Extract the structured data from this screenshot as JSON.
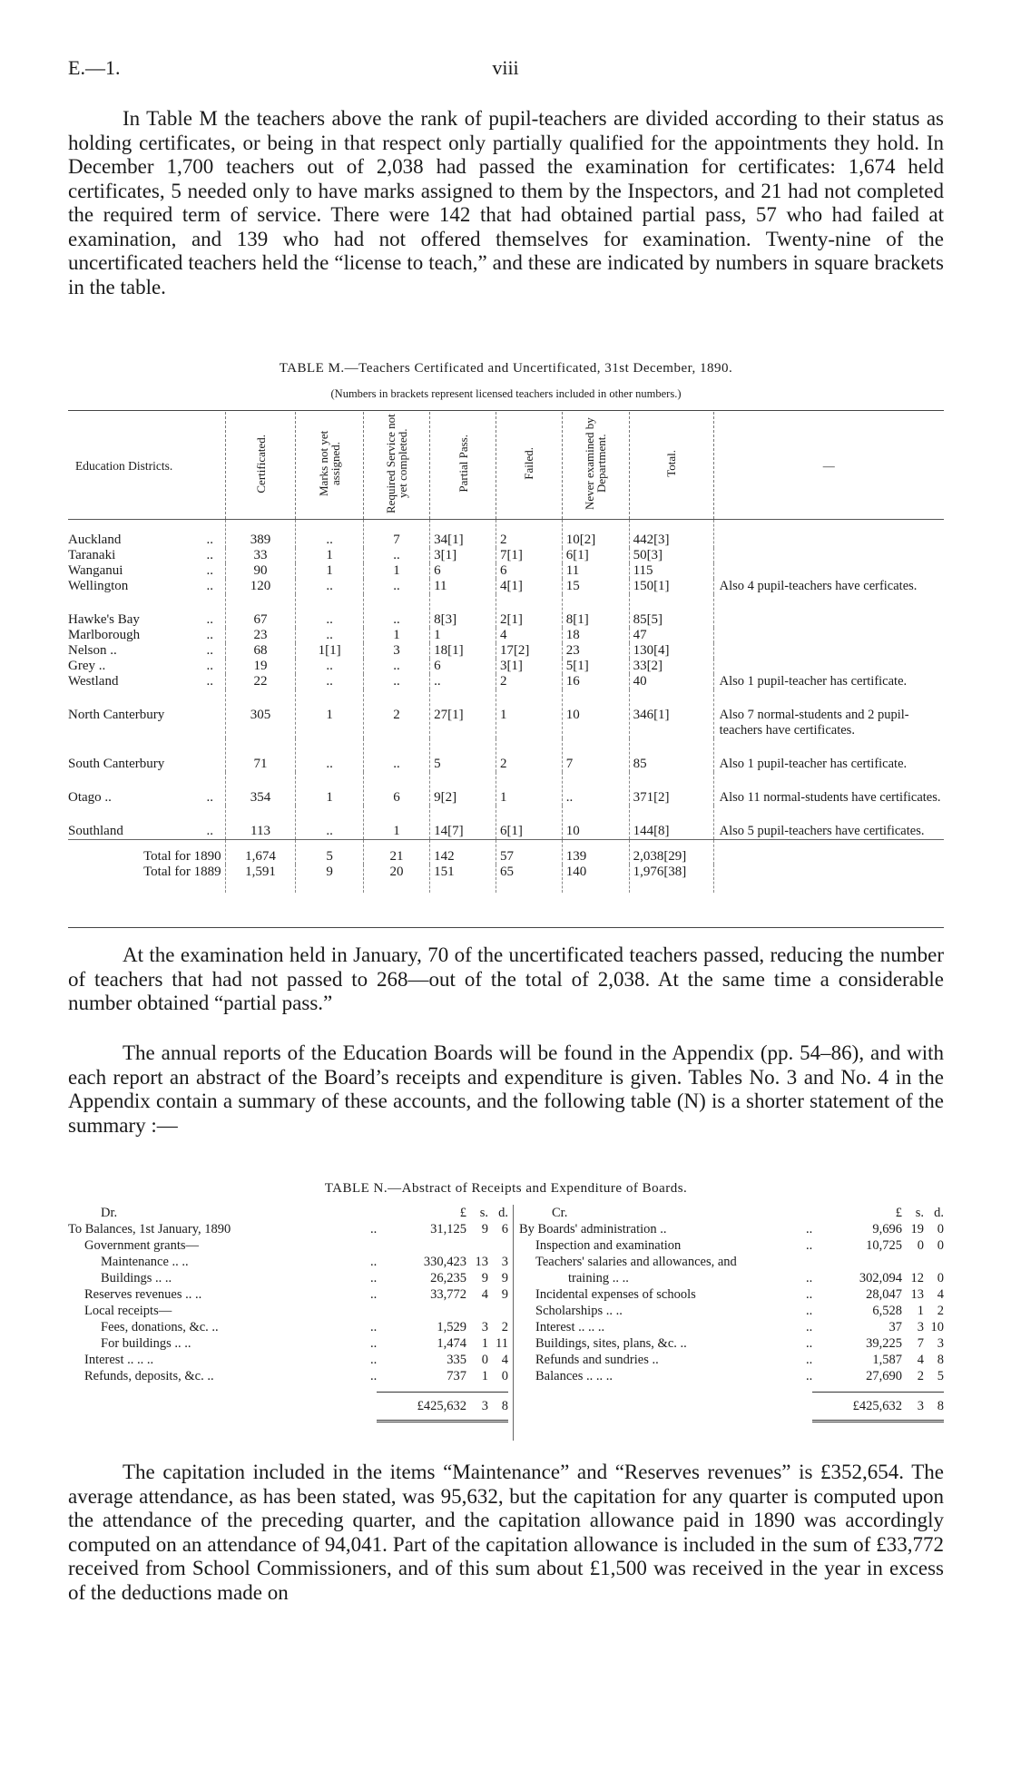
{
  "header": {
    "left": "E.—1.",
    "center": "viii"
  },
  "paragraphs": [
    "In Table M the teachers above the rank of pupil-teachers are divided according to their status as holding certificates, or being in that respect only partially qualified for the appointments they hold. In December 1,700 teachers out of 2,038 had passed the examination for certificates: 1,674 held certificates, 5 needed only to have marks assigned to them by the Inspectors, and 21 had not completed the required term of service. There were 142 that had obtained partial pass, 57 who had failed at examination, and 139 who had not offered themselves for examination. Twenty-nine of the uncertificated teachers held the “license to teach,” and these are indicated by numbers in square brackets in the table.",
    "At the examination held in January, 70 of the uncertificated teachers passed, reducing the number of teachers that had not passed to 268—out of the total of 2,038. At the same time a considerable number obtained “partial pass.”",
    "The annual reports of the Education Boards will be found in the Appendix (pp. 54–86), and with each report an abstract of the Board’s receipts and expenditure is given. Tables No. 3 and No. 4 in the Appendix contain a summary of these accounts, and the following table (N) is a shorter statement of the summary :—",
    "The capitation included in the items “Maintenance” and “Reserves revenues” is £352,654. The average attendance, as has been stated, was 95,632, but the capitation for any quarter is computed upon the attendance of the preceding quarter, and the capitation allowance paid in 1890 was accordingly computed on an attendance of 94,041. Part of the capitation allowance is included in the sum of £33,772 received from School Commissioners, and of this sum about £1,500 was received in the year in excess of the deductions made on"
  ],
  "table_m": {
    "title": "TABLE M.—Teachers Certificated and Uncertificated, 31st December, 1890.",
    "subtitle": "(Numbers in brackets represent licensed teachers included in other numbers.)",
    "columns": [
      "Education Districts.",
      "Certificated.",
      "Marks not yet assigned.",
      "Required Service not yet completed.",
      "Partial Pass.",
      "Failed.",
      "Never examined by Department.",
      "Total.",
      "—"
    ],
    "rows": [
      {
        "district": "Auckland",
        "dots": "..",
        "cells": [
          "389",
          "..",
          "7",
          "34[1]",
          "2",
          "10[2]",
          "442[3]"
        ],
        "remark": ""
      },
      {
        "district": "Taranaki",
        "dots": "..",
        "cells": [
          "33",
          "1",
          "..",
          "3[1]",
          "7[1]",
          "6[1]",
          "50[3]"
        ],
        "remark": ""
      },
      {
        "district": "Wanganui",
        "dots": "..",
        "cells": [
          "90",
          "1",
          "1",
          "6",
          "6",
          "11",
          "115"
        ],
        "remark": ""
      },
      {
        "district": "Wellington",
        "dots": "..",
        "cells": [
          "120",
          "..",
          "..",
          "11",
          "4[1]",
          "15",
          "150[1]"
        ],
        "remark": "Also 4 pupil-teachers have cerficates."
      },
      {
        "district": "Hawke's Bay",
        "dots": "..",
        "cells": [
          "67",
          "..",
          "..",
          "8[3]",
          "2[1]",
          "8[1]",
          "85[5]"
        ],
        "remark": "",
        "gap": true
      },
      {
        "district": "Marlborough",
        "dots": "..",
        "cells": [
          "23",
          "..",
          "1",
          "1",
          "4",
          "18",
          "47"
        ],
        "remark": ""
      },
      {
        "district": "Nelson ..",
        "dots": "..",
        "cells": [
          "68",
          "1[1]",
          "3",
          "18[1]",
          "17[2]",
          "23",
          "130[4]"
        ],
        "remark": ""
      },
      {
        "district": "Grey ..",
        "dots": "..",
        "cells": [
          "19",
          "..",
          "..",
          "6",
          "3[1]",
          "5[1]",
          "33[2]"
        ],
        "remark": ""
      },
      {
        "district": "Westland",
        "dots": "..",
        "cells": [
          "22",
          "..",
          "..",
          "..",
          "2",
          "16",
          "40"
        ],
        "remark": "Also 1 pupil-teacher has certificate."
      },
      {
        "district": "North Canterbury",
        "dots": "",
        "cells": [
          "305",
          "1",
          "2",
          "27[1]",
          "1",
          "10",
          "346[1]"
        ],
        "remark": "Also 7 normal-students and 2 pupil-teachers have certificates."
      },
      {
        "district": "South Canterbury",
        "dots": "",
        "cells": [
          "71",
          "..",
          "..",
          "5",
          "2",
          "7",
          "85"
        ],
        "remark": "Also 1 pupil-teacher has certificate."
      },
      {
        "district": "Otago ..",
        "dots": "..",
        "cells": [
          "354",
          "1",
          "6",
          "9[2]",
          "1",
          "..",
          "371[2]"
        ],
        "remark": "Also 11 normal-students have certificates."
      },
      {
        "district": "Southland",
        "dots": "..",
        "cells": [
          "113",
          "..",
          "1",
          "14[7]",
          "6[1]",
          "10",
          "144[8]"
        ],
        "remark": "Also 5 pupil-teachers have certificates."
      }
    ],
    "totals": [
      {
        "label": "Total for 1890",
        "cells": [
          "1,674",
          "5",
          "21",
          "142",
          "57",
          "139",
          "2,038[29]"
        ]
      },
      {
        "label": "Total for 1889",
        "cells": [
          "1,591",
          "9",
          "20",
          "151",
          "65",
          "140",
          "1,976[38]"
        ]
      }
    ]
  },
  "table_n": {
    "title": "TABLE N.—Abstract of Receipts and Expenditure of Boards.",
    "dr": {
      "heading": "Dr.",
      "units": [
        "£",
        "s.",
        "d."
      ],
      "rows": [
        {
          "label": "To Balances, 1st January, 1890",
          "dots": "..",
          "l": "31,125",
          "s": "9",
          "d": "6",
          "indent": 0
        },
        {
          "label": "Government grants—",
          "dots": "",
          "l": "",
          "s": "",
          "d": "",
          "indent": 1
        },
        {
          "label": "Maintenance      ..      ..",
          "dots": "..",
          "l": "330,423",
          "s": "13",
          "d": "3",
          "indent": 2
        },
        {
          "label": "Buildings      ..      ..",
          "dots": "..",
          "l": "26,235",
          "s": "9",
          "d": "9",
          "indent": 2
        },
        {
          "label": "Reserves revenues ..      ..",
          "dots": "..",
          "l": "33,772",
          "s": "4",
          "d": "9",
          "indent": 1
        },
        {
          "label": "Local receipts—",
          "dots": "",
          "l": "",
          "s": "",
          "d": "",
          "indent": 1
        },
        {
          "label": "Fees, donations, &c.      ..",
          "dots": "..",
          "l": "1,529",
          "s": "3",
          "d": "2",
          "indent": 2
        },
        {
          "label": "For buildings   ..      ..",
          "dots": "..",
          "l": "1,474",
          "s": "1",
          "d": "11",
          "indent": 2
        },
        {
          "label": "Interest   ..      ..      ..",
          "dots": "..",
          "l": "335",
          "s": "0",
          "d": "4",
          "indent": 1
        },
        {
          "label": "Refunds, deposits, &c.      ..",
          "dots": "..",
          "l": "737",
          "s": "1",
          "d": "0",
          "indent": 1
        }
      ],
      "total": {
        "l": "£425,632",
        "s": "3",
        "d": "8"
      }
    },
    "cr": {
      "heading": "Cr.",
      "units": [
        "£",
        "s.",
        "d."
      ],
      "rows": [
        {
          "label": "By Boards' administration      ..",
          "dots": "..",
          "l": "9,696",
          "s": "19",
          "d": "0",
          "indent": 0
        },
        {
          "label": "Inspection and examination",
          "dots": "..",
          "l": "10,725",
          "s": "0",
          "d": "0",
          "indent": 1
        },
        {
          "label": "Teachers' salaries and allowances, and",
          "dots": "",
          "l": "",
          "s": "",
          "d": "",
          "indent": 1
        },
        {
          "label": "training      ..      ..",
          "dots": "..",
          "l": "302,094",
          "s": "12",
          "d": "0",
          "indent": 3
        },
        {
          "label": "Incidental expenses of schools",
          "dots": "..",
          "l": "28,047",
          "s": "13",
          "d": "4",
          "indent": 1
        },
        {
          "label": "Scholarships      ..      ..",
          "dots": "..",
          "l": "6,528",
          "s": "1",
          "d": "2",
          "indent": 1
        },
        {
          "label": "Interest  ..      ..      ..",
          "dots": "..",
          "l": "37",
          "s": "3",
          "d": "10",
          "indent": 1
        },
        {
          "label": "Buildings, sites, plans, &c. ..",
          "dots": "..",
          "l": "39,225",
          "s": "7",
          "d": "3",
          "indent": 1
        },
        {
          "label": "Refunds and sundries      ..",
          "dots": "..",
          "l": "1,587",
          "s": "4",
          "d": "8",
          "indent": 1
        },
        {
          "label": "Balances ..      ..      ..",
          "dots": "..",
          "l": "27,690",
          "s": "2",
          "d": "5",
          "indent": 1
        }
      ],
      "total": {
        "l": "£425,632",
        "s": "3",
        "d": "8"
      }
    }
  }
}
